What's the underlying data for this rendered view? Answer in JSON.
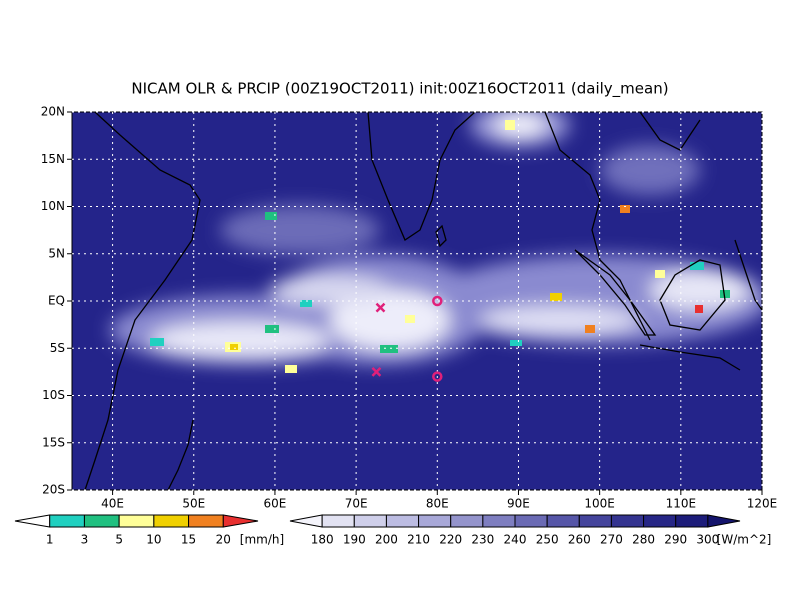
{
  "map": {
    "title": "NICAM OLR & PRCIP (00Z19OCT2011) init:00Z16OCT2011 (daily_mean)",
    "xlim": [
      35,
      120
    ],
    "ylim": [
      -20,
      20
    ],
    "lon_ticks": [
      {
        "value": 40,
        "label": "40E"
      },
      {
        "value": 50,
        "label": "50E"
      },
      {
        "value": 60,
        "label": "60E"
      },
      {
        "value": 70,
        "label": "70E"
      },
      {
        "value": 80,
        "label": "80E"
      },
      {
        "value": 90,
        "label": "90E"
      },
      {
        "value": 100,
        "label": "100E"
      },
      {
        "value": 110,
        "label": "110E"
      },
      {
        "value": 120,
        "label": "120E"
      }
    ],
    "lat_ticks": [
      {
        "value": 20,
        "label": "20N"
      },
      {
        "value": 15,
        "label": "15N"
      },
      {
        "value": 10,
        "label": "10N"
      },
      {
        "value": 5,
        "label": "5N"
      },
      {
        "value": 0,
        "label": "EQ"
      },
      {
        "value": -5,
        "label": "5S"
      },
      {
        "value": -10,
        "label": "10S"
      },
      {
        "value": -15,
        "label": "15S"
      },
      {
        "value": -20,
        "label": "20S"
      }
    ],
    "grid": true,
    "markers": [
      {
        "lon": 73,
        "lat": -0.7,
        "symbol": "x"
      },
      {
        "lon": 72.5,
        "lat": -7.5,
        "symbol": "x"
      },
      {
        "lon": 80,
        "lat": 0,
        "symbol": "circle"
      },
      {
        "lon": 80,
        "lat": -8,
        "symbol": "circle"
      }
    ],
    "marker_color": "#e0207a"
  },
  "precip_legend": {
    "labels": [
      "1",
      "3",
      "5",
      "10",
      "15",
      "20"
    ],
    "unit": "[mm/h]",
    "colors": [
      "#ffffff",
      "#20d0c0",
      "#20c080",
      "#ffff99",
      "#f0d000",
      "#f08020",
      "#e83030"
    ]
  },
  "olr_legend": {
    "labels": [
      "180",
      "190",
      "200",
      "210",
      "220",
      "230",
      "240",
      "250",
      "260",
      "270",
      "280",
      "290",
      "300"
    ],
    "unit": "[W/m^2]",
    "colors": [
      "#f4f4fb",
      "#e2e2f2",
      "#cfcfea",
      "#bcbce2",
      "#a8a8d8",
      "#9494cc",
      "#7e7ec0",
      "#6a6ab4",
      "#5656a8",
      "#44449c",
      "#343490",
      "#262686",
      "#1c1c7a",
      "#14146c"
    ]
  }
}
